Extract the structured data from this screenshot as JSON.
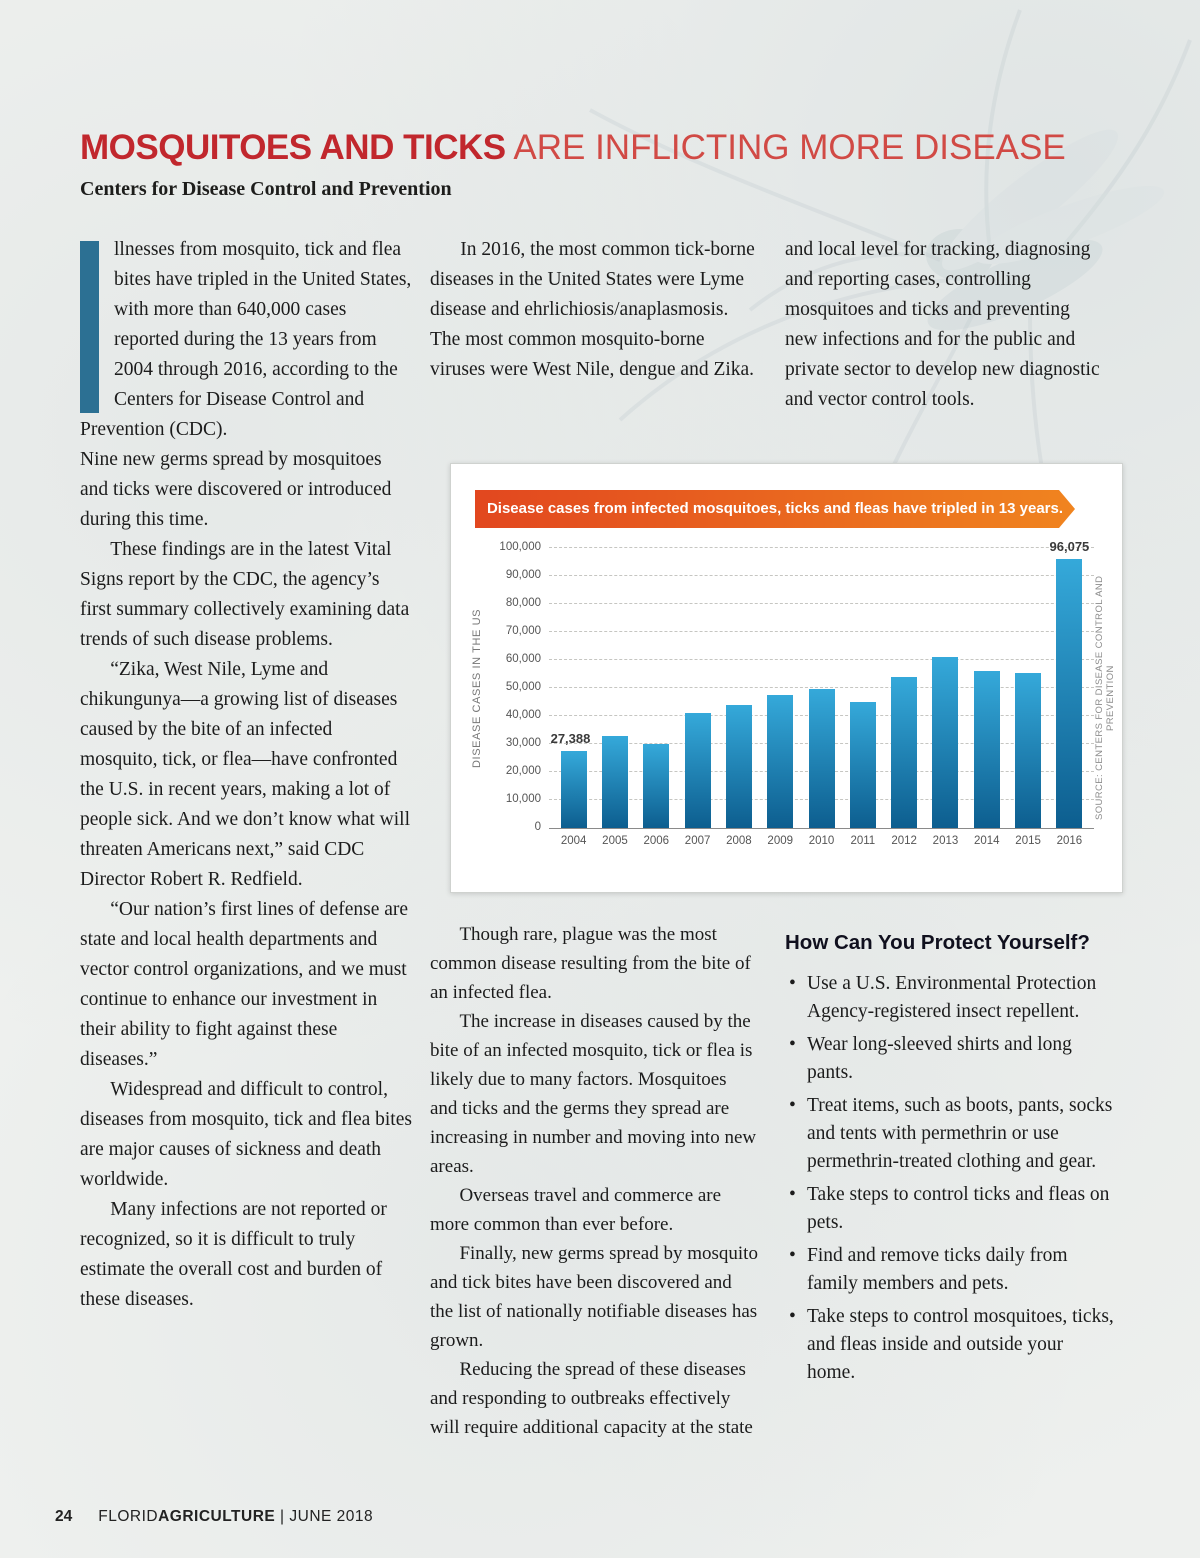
{
  "page": {
    "title_bold": "MOSQUITOES AND TICKS",
    "title_light": " ARE INFLICTING MORE DISEASE",
    "byline": "Centers for Disease Control and Prevention",
    "footer_page": "24",
    "footer_mag_regular": "FLORID",
    "footer_mag_bold": "AGRICULTURE",
    "footer_issue": " | JUNE 2018"
  },
  "colors": {
    "accent_red": "#c1272d",
    "accent_red_light": "#d14a45",
    "dropcap_blue": "#2c7093",
    "banner_left": "#e2471f",
    "banner_right": "#f0841f"
  },
  "article": {
    "dropcap": "I",
    "col1_first": "llnesses from mosquito, tick and flea bites have tripled in the United States, with more than 640,000 cases reported during the 13 years from 2004 through 2016, according to the Centers for Disease Control and Prevention (CDC).",
    "col1_rest": [
      "Nine new germs spread by mosquitoes and ticks were discovered or introduced during this time.",
      "These findings are in the latest Vital Signs report by the CDC, the agency’s first summary collectively examining data trends of such disease problems.",
      "“Zika, West Nile, Lyme and chikungunya—a growing list of diseases caused by the bite of an infected mosquito, tick, or flea—have confronted the U.S. in recent years, making a lot of people sick. And we don’t know what will threaten Americans next,” said CDC Director Robert R. Redfield.",
      "“Our nation’s first lines of defense are state and local health departments and vector control organizations, and we must continue to enhance our investment in their ability to fight against these diseases.”",
      "Widespread and difficult to control, diseases from mosquito, tick and flea bites are major causes of sickness and death worldwide.",
      "Many infections are not reported or recognized, so it is difficult to truly estimate the overall cost and burden of these diseases."
    ],
    "col2_top": [
      "In 2016, the most common tick-borne diseases in the United States were Lyme disease and ehrlichiosis/anaplasmosis. The most common mosquito-borne viruses were West Nile, dengue and Zika."
    ],
    "col3_top": [
      "and local level for tracking, diagnosing and reporting cases, controlling mosquitoes and ticks and preventing new infections and for the public and private sector to develop new diagnostic and vector control tools."
    ],
    "col2_bottom": [
      "Though rare, plague was the most common disease resulting from the bite of an infected flea.",
      "The increase in diseases caused by the bite of an infected mosquito, tick or flea is likely due to many factors. Mosquitoes and ticks and the germs they spread are increasing in number and moving into new areas.",
      "Overseas travel and commerce are more common than ever before.",
      "Finally, new germs spread by mosquito and tick bites have been discovered and the list of nationally notifiable diseases has grown.",
      "Reducing the spread of these diseases and responding to outbreaks effectively will require additional capacity at the state"
    ],
    "protect_heading": "How Can You Protect Yourself?",
    "protect_bullets": [
      "Use a U.S. Environmental Protection Agency-registered insect repellent.",
      "Wear long-sleeved shirts and long pants.",
      "Treat items, such as boots, pants, socks and tents with permethrin or use permethrin-treated clothing and gear.",
      "Take steps to control ticks and fleas on pets.",
      "Find and remove ticks daily from family members and pets.",
      "Take steps to control mosquitoes, ticks, and fleas inside and outside your home."
    ]
  },
  "chart_data": {
    "type": "bar",
    "title": "Disease cases from infected mosquitoes, ticks and fleas have tripled in 13 years.",
    "ylabel": "DISEASE CASES IN THE US",
    "source": "SOURCE: CENTERS FOR DISEASE CONTROL AND PREVENTION",
    "categories": [
      "2004",
      "2005",
      "2006",
      "2007",
      "2008",
      "2009",
      "2010",
      "2011",
      "2012",
      "2013",
      "2014",
      "2015",
      "2016"
    ],
    "values": [
      27388,
      33000,
      30000,
      41000,
      44000,
      47500,
      49500,
      45000,
      54000,
      61000,
      56000,
      55500,
      96075
    ],
    "ylim": [
      0,
      100000
    ],
    "ytick_step": 10000,
    "first_label": "27,388",
    "last_label": "96,075",
    "grid": "dashed-horizontal",
    "bar_color_top": "#35a9da",
    "bar_color_bottom": "#0d5e8f"
  }
}
